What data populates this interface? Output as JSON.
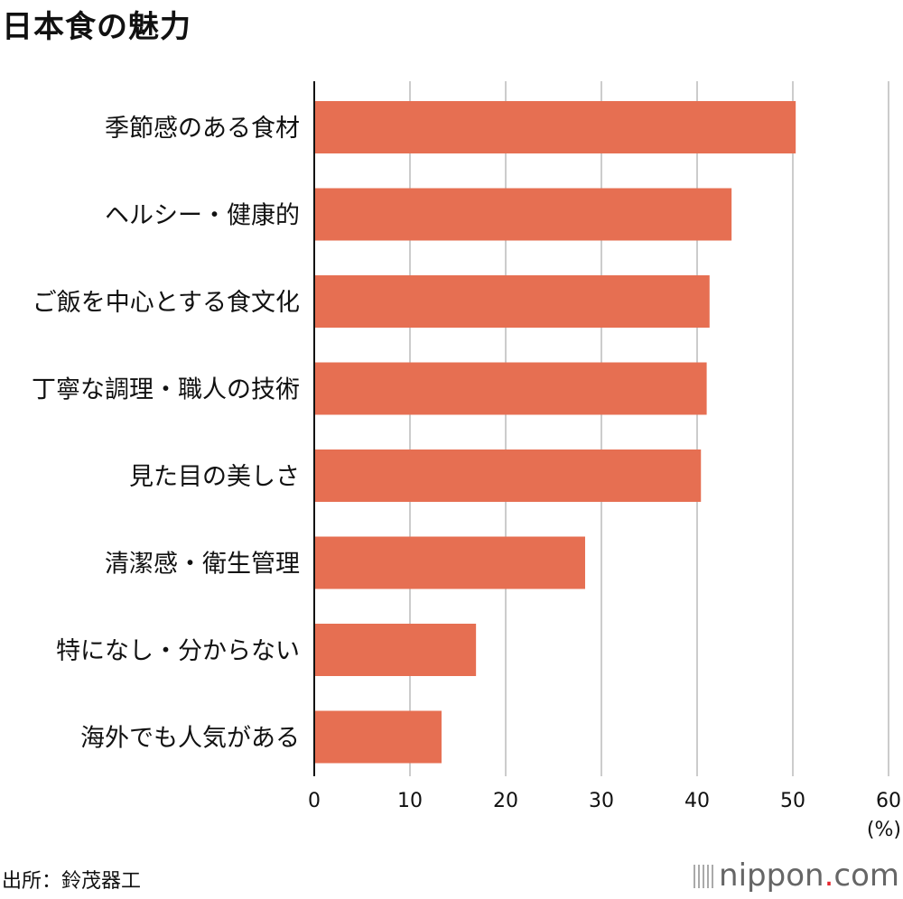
{
  "chart_data": {
    "type": "bar",
    "orientation": "horizontal",
    "title": "日本食の魅力",
    "categories": [
      "季節感のある食材",
      "ヘルシー・健康的",
      "ご飯を中心とする食文化",
      "丁寧な調理・職人の技術",
      "見た目の美しさ",
      "清潔感・衛生管理",
      "特になし・分からない",
      "海外でも人気がある"
    ],
    "values": [
      50.3,
      43.6,
      41.3,
      41.0,
      40.4,
      28.3,
      16.9,
      13.3
    ],
    "xlim": [
      0,
      60
    ],
    "xticks": [
      "0",
      "10",
      "20",
      "30",
      "40",
      "50",
      "60"
    ],
    "unit_label": "(%)",
    "grid": true,
    "bar_color": "#e66f52",
    "grid_color": "#cccccc"
  },
  "source": "出所：鈴茂器工",
  "logo": {
    "name": "nippon",
    "dot": ".",
    "tld": "com",
    "accent": "#e6262e"
  }
}
